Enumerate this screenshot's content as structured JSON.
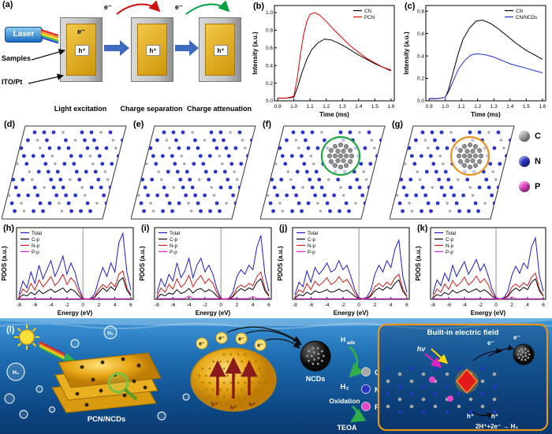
{
  "panel_labels": {
    "a": "(a)",
    "b": "(b)",
    "c": "(c)",
    "d": "(d)",
    "e": "(e)",
    "f": "(f)",
    "g": "(g)",
    "h": "(h)",
    "i": "(i)",
    "j": "(j)",
    "k": "(k)",
    "l": "(l)"
  },
  "panel_a": {
    "laser_label": "Laser",
    "samples_label": "Samples",
    "electrode_label": "ITO/Pt",
    "electron_label": "e⁻",
    "hole_label": "h⁺",
    "captions": [
      "Light excitation",
      "Charge separation",
      "Charge attenuation"
    ]
  },
  "atom_legend": [
    {
      "label": "C",
      "color": "#a8a8a8"
    },
    {
      "label": "N",
      "color": "#2b35c8"
    },
    {
      "label": "P",
      "color": "#e645c8"
    }
  ],
  "lattice_panels": [
    {
      "id": "d",
      "cluster_color": null
    },
    {
      "id": "e",
      "cluster_color": null
    },
    {
      "id": "f",
      "cluster_color": "#1fa63c"
    },
    {
      "id": "g",
      "cluster_color": "#e8941a"
    }
  ],
  "panel_l": {
    "pcn_label": "PCN/NCDs",
    "ncds_label": "NCDs",
    "hads_main": "H",
    "hads_sub": "ads",
    "h2_label": "H₂",
    "oxidation_label": "Oxidation",
    "teoa_label": "TEOA",
    "field_box_title": "Built-in electric field",
    "hv_label": "hν",
    "reaction_label": "2H⁺+2e⁻ → H₂",
    "electron_label": "e⁻",
    "hole_label": "h⁺"
  },
  "chart_data": [
    {
      "id": "b",
      "type": "line",
      "xlabel": "Time (ms)",
      "ylabel": "Intensity (a.u.)",
      "xlim": [
        0.88,
        1.62
      ],
      "ylim": [
        0,
        1.08
      ],
      "xtick_vals": [
        0.9,
        1.0,
        1.1,
        1.2,
        1.3,
        1.4,
        1.5,
        1.6
      ],
      "xtick_labels": [
        "0.9",
        "1.0",
        "1.1",
        "1.2",
        "1.3",
        "1.4",
        "1.5",
        "1.6"
      ],
      "ytick_vals": [
        0,
        0.2,
        0.4,
        0.6,
        0.8,
        1.0
      ],
      "ytick_labels": [
        "0.0",
        "0.2",
        "0.4",
        "0.6",
        "0.8",
        "1.0"
      ],
      "legend": "right",
      "series": [
        {
          "name": "CN",
          "color": "#000000",
          "x": [
            0.9,
            0.95,
            1.0,
            1.02,
            1.05,
            1.08,
            1.11,
            1.15,
            1.19,
            1.23,
            1.28,
            1.33,
            1.38,
            1.44,
            1.5,
            1.55,
            1.6
          ],
          "y": [
            0.03,
            0.03,
            0.04,
            0.14,
            0.32,
            0.47,
            0.58,
            0.66,
            0.7,
            0.69,
            0.65,
            0.6,
            0.54,
            0.48,
            0.42,
            0.38,
            0.34
          ]
        },
        {
          "name": "PCN",
          "color": "#e60000",
          "x": [
            0.9,
            0.95,
            1.0,
            1.02,
            1.04,
            1.06,
            1.08,
            1.1,
            1.13,
            1.16,
            1.2,
            1.25,
            1.3,
            1.35,
            1.4,
            1.45,
            1.5,
            1.55,
            1.6
          ],
          "y": [
            0.03,
            0.03,
            0.05,
            0.25,
            0.52,
            0.75,
            0.9,
            0.98,
            1.0,
            0.97,
            0.9,
            0.8,
            0.71,
            0.62,
            0.55,
            0.48,
            0.43,
            0.38,
            0.35
          ]
        }
      ]
    },
    {
      "id": "c",
      "type": "line",
      "xlabel": "Time (ms)",
      "ylabel": "Intensity (a.u.)",
      "xlim": [
        0.88,
        1.62
      ],
      "ylim": [
        0,
        0.85
      ],
      "xtick_vals": [
        0.9,
        1.0,
        1.1,
        1.2,
        1.3,
        1.4,
        1.5,
        1.6
      ],
      "xtick_labels": [
        "0.9",
        "1.0",
        "1.1",
        "1.2",
        "1.3",
        "1.4",
        "1.5",
        "1.6"
      ],
      "ytick_vals": [
        0,
        0.2,
        0.4,
        0.6,
        0.8
      ],
      "ytick_labels": [
        "0.0",
        "0.2",
        "0.4",
        "0.6",
        "0.8"
      ],
      "legend": "right",
      "series": [
        {
          "name": "CN",
          "color": "#000000",
          "x": [
            0.9,
            0.95,
            1.0,
            1.02,
            1.05,
            1.08,
            1.11,
            1.15,
            1.19,
            1.23,
            1.28,
            1.33,
            1.38,
            1.44,
            1.5,
            1.55,
            1.6
          ],
          "y": [
            0.02,
            0.02,
            0.03,
            0.1,
            0.26,
            0.42,
            0.55,
            0.65,
            0.71,
            0.72,
            0.69,
            0.64,
            0.58,
            0.51,
            0.45,
            0.41,
            0.37
          ]
        },
        {
          "name": "CN/NCDs",
          "color": "#2233cc",
          "x": [
            0.9,
            0.95,
            1.0,
            1.02,
            1.05,
            1.08,
            1.12,
            1.16,
            1.2,
            1.25,
            1.3,
            1.35,
            1.4,
            1.45,
            1.5,
            1.55,
            1.6
          ],
          "y": [
            0.02,
            0.02,
            0.03,
            0.08,
            0.18,
            0.28,
            0.36,
            0.41,
            0.42,
            0.41,
            0.39,
            0.36,
            0.33,
            0.31,
            0.29,
            0.27,
            0.25
          ]
        }
      ]
    },
    {
      "id": "h",
      "type": "line",
      "xlabel": "Energy (eV)",
      "ylabel": "PDOS (a.u.)",
      "xlim": [
        -8.3,
        6.3
      ],
      "ylim": [
        0,
        6.3
      ],
      "xtick_vals": [
        -8,
        -6,
        -4,
        -2,
        0,
        2,
        4,
        6
      ],
      "xtick_labels": [
        "-8",
        "-6",
        "-4",
        "-2",
        "0",
        "2",
        "4",
        "6"
      ],
      "vline": 0,
      "legend": "left",
      "x_start": -8,
      "x_step": 0.5,
      "series": [
        {
          "name": "Total",
          "color": "#1c1cd0",
          "y_values": [
            0.4,
            1.6,
            1.0,
            2.4,
            1.4,
            3.0,
            1.8,
            2.6,
            3.4,
            2.0,
            2.8,
            3.8,
            2.2,
            3.2,
            2.4,
            1.0,
            0.1,
            0.0,
            0.1,
            0.5,
            1.8,
            2.8,
            2.0,
            3.2,
            2.4,
            5.0,
            5.8,
            2.4,
            0.8
          ]
        },
        {
          "name": "C-p",
          "color": "#000000",
          "y_values": [
            0.1,
            0.4,
            0.3,
            0.6,
            0.4,
            0.8,
            0.5,
            0.7,
            0.9,
            0.6,
            0.8,
            1.0,
            0.6,
            0.9,
            0.7,
            0.3,
            0.0,
            0.0,
            0.0,
            0.2,
            0.6,
            1.0,
            0.7,
            1.1,
            0.8,
            1.6,
            1.9,
            0.8,
            0.3
          ]
        },
        {
          "name": "N-p",
          "color": "#d61a1a",
          "y_values": [
            0.2,
            0.9,
            0.6,
            1.4,
            0.8,
            1.7,
            1.1,
            1.5,
            2.0,
            1.2,
            1.6,
            2.2,
            1.3,
            1.9,
            1.5,
            0.6,
            0.05,
            0.0,
            0.05,
            0.25,
            0.9,
            1.3,
            1.0,
            1.5,
            1.1,
            2.2,
            2.5,
            1.0,
            0.4
          ]
        },
        {
          "name": "P-p",
          "color": "#e61ae6",
          "y_values": [
            0.05,
            0.05,
            0.05,
            0.05,
            0.05,
            0.05,
            0.05,
            0.05,
            0.05,
            0.05,
            0.05,
            0.05,
            0.05,
            0.05,
            0.05,
            0.05,
            0.05,
            0.05,
            0.05,
            0.05,
            0.05,
            0.05,
            0.05,
            0.05,
            0.05,
            0.05,
            0.05,
            0.05,
            0.05
          ]
        }
      ]
    },
    {
      "id": "i",
      "type": "line",
      "xlabel": "Energy (eV)",
      "ylabel": "PDOS (a.u.)",
      "xlim": [
        -8.3,
        6.3
      ],
      "ylim": [
        0,
        6.3
      ],
      "xtick_vals": [
        -8,
        -6,
        -4,
        -2,
        0,
        2,
        4,
        6
      ],
      "xtick_labels": [
        "-8",
        "-6",
        "-4",
        "-2",
        "0",
        "2",
        "4",
        "6"
      ],
      "vline": 0,
      "legend": "left",
      "x_start": -8,
      "x_step": 0.5,
      "series": [
        {
          "name": "Total",
          "color": "#1c1cd0",
          "y_values": [
            0.5,
            1.8,
            1.1,
            2.2,
            1.6,
            3.2,
            1.9,
            2.5,
            3.6,
            1.9,
            3.0,
            3.6,
            2.4,
            3.0,
            2.2,
            0.9,
            0.1,
            0.0,
            0.1,
            0.6,
            2.0,
            2.6,
            2.2,
            3.0,
            2.6,
            4.6,
            5.6,
            2.2,
            0.7
          ]
        },
        {
          "name": "C-p",
          "color": "#000000",
          "y_values": [
            0.12,
            0.45,
            0.3,
            0.55,
            0.45,
            0.85,
            0.5,
            0.65,
            0.95,
            0.55,
            0.85,
            0.95,
            0.65,
            0.85,
            0.65,
            0.28,
            0.0,
            0.0,
            0.0,
            0.22,
            0.65,
            0.95,
            0.75,
            1.0,
            0.85,
            1.5,
            1.8,
            0.75,
            0.28
          ]
        },
        {
          "name": "N-p",
          "color": "#d61a1a",
          "y_values": [
            0.25,
            1.0,
            0.6,
            1.3,
            0.9,
            1.8,
            1.05,
            1.4,
            2.1,
            1.1,
            1.7,
            2.1,
            1.4,
            1.8,
            1.4,
            0.55,
            0.05,
            0.0,
            0.05,
            0.3,
            1.0,
            1.25,
            1.05,
            1.4,
            1.2,
            2.0,
            2.4,
            0.95,
            0.35
          ]
        },
        {
          "name": "P-p",
          "color": "#e61ae6",
          "y_values": [
            0.06,
            0.06,
            0.06,
            0.06,
            0.06,
            0.06,
            0.06,
            0.06,
            0.3,
            0.06,
            0.06,
            0.06,
            0.06,
            0.06,
            0.06,
            0.06,
            0.06,
            0.06,
            0.06,
            0.06,
            0.06,
            0.06,
            0.06,
            0.06,
            0.25,
            0.06,
            0.06,
            0.06,
            0.06
          ]
        }
      ]
    },
    {
      "id": "j",
      "type": "line",
      "xlabel": "Energy (eV)",
      "ylabel": "PDOS (a.u.)",
      "xlim": [
        -8.3,
        6.3
      ],
      "ylim": [
        0,
        6.3
      ],
      "xtick_vals": [
        -8,
        -6,
        -4,
        -2,
        0,
        2,
        4,
        6
      ],
      "xtick_labels": [
        "-8",
        "-6",
        "-4",
        "-2",
        "0",
        "2",
        "4",
        "6"
      ],
      "vline": 0,
      "legend": "left",
      "x_start": -8,
      "x_step": 0.5,
      "series": [
        {
          "name": "Total",
          "color": "#1c1cd0",
          "y_values": [
            0.4,
            1.5,
            1.1,
            2.5,
            1.5,
            2.8,
            2.2,
            2.6,
            3.2,
            2.4,
            2.6,
            3.4,
            2.6,
            3.0,
            2.0,
            0.8,
            0.15,
            0.05,
            0.2,
            0.8,
            2.2,
            3.0,
            2.4,
            3.4,
            2.8,
            4.4,
            5.2,
            2.0,
            0.6
          ]
        },
        {
          "name": "C-p",
          "color": "#000000",
          "y_values": [
            0.1,
            0.4,
            0.32,
            0.62,
            0.42,
            0.75,
            0.58,
            0.68,
            0.85,
            0.62,
            0.7,
            0.9,
            0.68,
            0.82,
            0.55,
            0.25,
            0.05,
            0.0,
            0.05,
            0.3,
            0.75,
            1.0,
            0.8,
            1.1,
            0.9,
            1.4,
            1.7,
            0.7,
            0.25
          ]
        },
        {
          "name": "N-p",
          "color": "#d61a1a",
          "y_values": [
            0.2,
            0.85,
            0.6,
            1.4,
            0.85,
            1.6,
            1.2,
            1.5,
            1.9,
            1.3,
            1.5,
            2.0,
            1.5,
            1.75,
            1.2,
            0.5,
            0.08,
            0.0,
            0.1,
            0.4,
            1.1,
            1.4,
            1.1,
            1.5,
            1.25,
            1.9,
            2.2,
            0.9,
            0.3
          ]
        },
        {
          "name": "P-p",
          "color": "#e61ae6",
          "y_values": [
            0.05,
            0.05,
            0.05,
            0.05,
            0.05,
            0.05,
            0.05,
            0.05,
            0.05,
            0.05,
            0.05,
            0.05,
            0.05,
            0.05,
            0.05,
            0.05,
            0.05,
            0.05,
            0.05,
            0.05,
            0.05,
            0.05,
            0.05,
            0.05,
            0.05,
            0.05,
            0.05,
            0.05,
            0.05
          ]
        }
      ]
    },
    {
      "id": "k",
      "type": "line",
      "xlabel": "Energy (eV)",
      "ylabel": "PDOS (a.u.)",
      "xlim": [
        -8.3,
        6.3
      ],
      "ylim": [
        0,
        6.3
      ],
      "xtick_vals": [
        -8,
        -6,
        -4,
        -2,
        0,
        2,
        4,
        6
      ],
      "xtick_labels": [
        "-8",
        "-6",
        "-4",
        "-2",
        "0",
        "2",
        "4",
        "6"
      ],
      "vline": 0,
      "legend": "left",
      "x_start": -8,
      "x_step": 0.5,
      "series": [
        {
          "name": "Total",
          "color": "#1c1cd0",
          "y_values": [
            0.45,
            1.7,
            1.2,
            2.3,
            1.6,
            3.0,
            2.0,
            2.7,
            3.3,
            2.2,
            2.8,
            3.5,
            2.5,
            3.1,
            2.1,
            0.9,
            0.15,
            0.05,
            0.15,
            0.7,
            2.1,
            2.9,
            2.3,
            3.2,
            2.7,
            4.6,
            5.4,
            2.1,
            0.7
          ]
        },
        {
          "name": "C-p",
          "color": "#000000",
          "y_values": [
            0.1,
            0.42,
            0.3,
            0.6,
            0.42,
            0.8,
            0.55,
            0.7,
            0.88,
            0.6,
            0.75,
            0.92,
            0.66,
            0.85,
            0.6,
            0.27,
            0.04,
            0.0,
            0.04,
            0.25,
            0.7,
            1.0,
            0.75,
            1.05,
            0.85,
            1.5,
            1.8,
            0.75,
            0.27
          ]
        },
        {
          "name": "N-p",
          "color": "#d61a1a",
          "y_values": [
            0.22,
            0.9,
            0.62,
            1.35,
            0.88,
            1.65,
            1.15,
            1.45,
            1.95,
            1.25,
            1.55,
            2.05,
            1.45,
            1.8,
            1.3,
            0.52,
            0.06,
            0.0,
            0.08,
            0.35,
            1.05,
            1.35,
            1.05,
            1.45,
            1.2,
            1.95,
            2.3,
            0.92,
            0.32
          ]
        },
        {
          "name": "P-p",
          "color": "#e61ae6",
          "y_values": [
            0.05,
            0.05,
            0.05,
            0.05,
            0.05,
            0.05,
            0.05,
            0.05,
            0.05,
            0.05,
            0.05,
            0.05,
            0.05,
            0.05,
            0.05,
            0.05,
            0.05,
            0.05,
            0.05,
            0.05,
            0.2,
            0.05,
            0.05,
            0.05,
            0.05,
            0.05,
            0.05,
            0.05,
            0.05
          ]
        }
      ]
    }
  ]
}
